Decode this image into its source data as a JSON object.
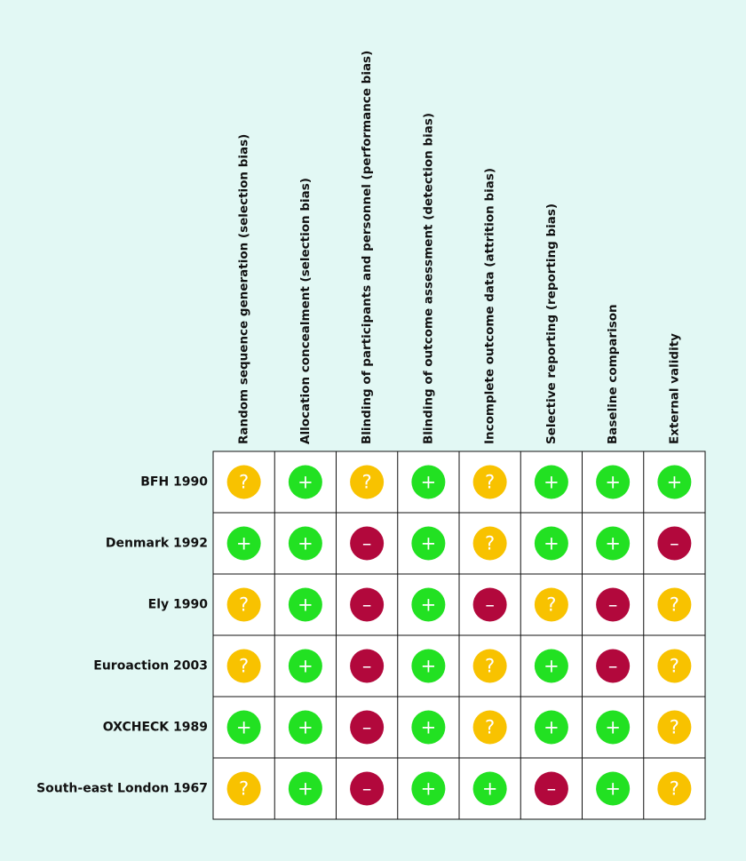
{
  "table": {
    "columns": [
      "Random sequence generation (selection bias)",
      "Allocation concealment (selection bias)",
      "Blinding of participants and personnel (performance bias)",
      "Blinding of outcome assessment (detection bias)",
      "Incomplete outcome data (attrition bias)",
      "Selective reporting (reporting bias)",
      "Baseline comparison",
      "External validity"
    ],
    "rows": [
      {
        "study": "BFH 1990",
        "judgments": [
          "?",
          "+",
          "?",
          "+",
          "?",
          "+",
          "+",
          "+"
        ]
      },
      {
        "study": "Denmark 1992",
        "judgments": [
          "+",
          "+",
          "–",
          "+",
          "?",
          "+",
          "+",
          "–"
        ]
      },
      {
        "study": "Ely 1990",
        "judgments": [
          "?",
          "+",
          "–",
          "+",
          "–",
          "?",
          "–",
          "?"
        ]
      },
      {
        "study": "Euroaction 2003",
        "judgments": [
          "?",
          "+",
          "–",
          "+",
          "?",
          "+",
          "–",
          "?"
        ]
      },
      {
        "study": "OXCHECK 1989",
        "judgments": [
          "+",
          "+",
          "–",
          "+",
          "?",
          "+",
          "+",
          "?"
        ]
      },
      {
        "study": "South-east London 1967",
        "judgments": [
          "?",
          "+",
          "–",
          "+",
          "+",
          "–",
          "+",
          "?"
        ]
      }
    ],
    "judgment_colors": {
      "+": "#22e122",
      "?": "#f8c200",
      "–": "#b2083c"
    }
  }
}
